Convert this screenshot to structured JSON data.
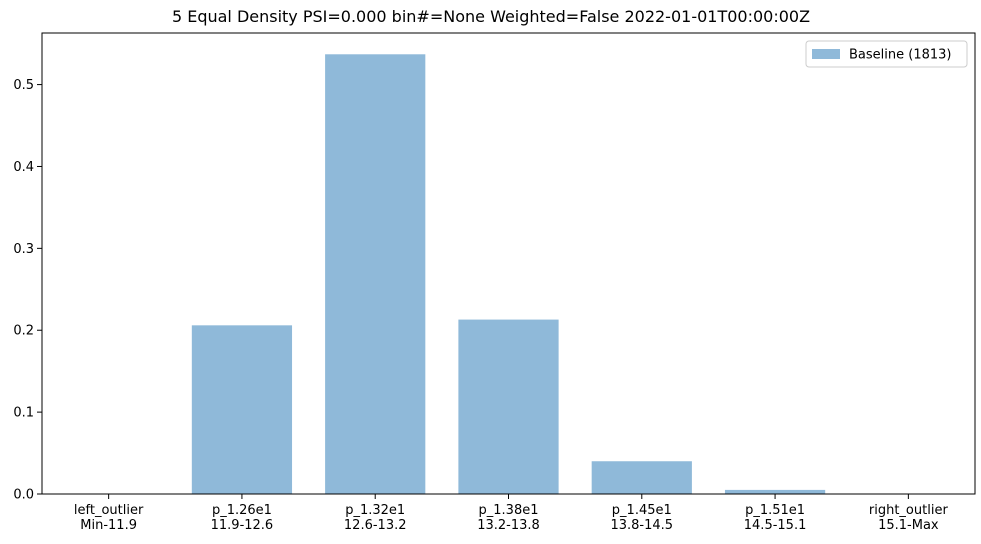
{
  "chart_data": {
    "type": "bar",
    "title": "5 Equal Density PSI=0.000 bin#=None Weighted=False 2022-01-01T00:00:00Z",
    "xlabel": "",
    "ylabel": "",
    "categories": [
      [
        "left_outlier",
        "Min-11.9"
      ],
      [
        "p_1.26e1",
        "11.9-12.6"
      ],
      [
        "p_1.32e1",
        "12.6-13.2"
      ],
      [
        "p_1.38e1",
        "13.2-13.8"
      ],
      [
        "p_1.45e1",
        "13.8-14.5"
      ],
      [
        "p_1.51e1",
        "14.5-15.1"
      ],
      [
        "right_outlier",
        "15.1-Max"
      ]
    ],
    "series": [
      {
        "name": "Baseline (1813)",
        "color": "#8fb9d9",
        "values": [
          0.0,
          0.206,
          0.537,
          0.213,
          0.04,
          0.005,
          0.0
        ]
      }
    ],
    "ylim": [
      0,
      0.563
    ],
    "yticks": [
      "0.0",
      "0.1",
      "0.2",
      "0.3",
      "0.4",
      "0.5"
    ],
    "grid": false,
    "legend_position": "top-right"
  }
}
